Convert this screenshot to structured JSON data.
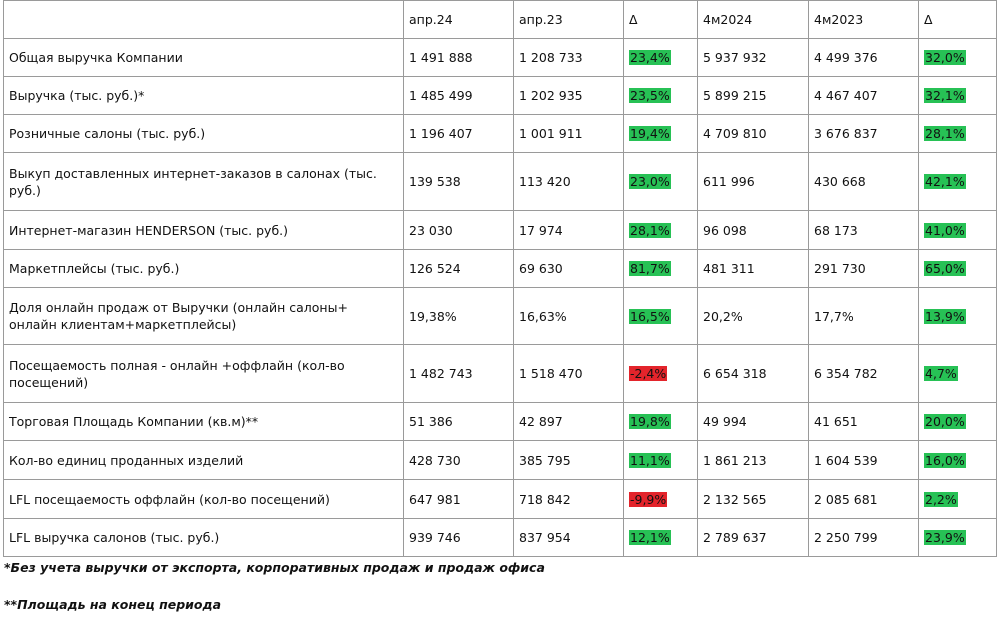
{
  "table": {
    "header": [
      "",
      "апр.24",
      "апр.23",
      "Δ",
      "4м2024",
      "4м2023",
      "Δ"
    ],
    "rows": [
      [
        "Общая выручка Компании",
        "1 491 888",
        "1 208 733",
        "23,4%",
        "5 937 932",
        "4 499 376",
        "32,0%"
      ],
      [
        "Выручка (тыс. руб.)*",
        "1 485 499",
        "1 202 935",
        "23,5%",
        "5 899 215",
        "4 467 407",
        "32,1%"
      ],
      [
        "Розничные салоны (тыс. руб.)",
        "1 196 407",
        "1 001 911",
        "19,4%",
        "4 709 810",
        "3 676 837",
        "28,1%"
      ],
      [
        "Выкуп доставленных интернет-заказов в салонах (тыс. руб.)",
        "139 538",
        "113 420",
        "23,0%",
        "611 996",
        "430 668",
        "42,1%"
      ],
      [
        "Интернет-магазин HENDERSON (тыс. руб.)",
        "23 030",
        "17 974",
        "28,1%",
        "96 098",
        "68 173",
        "41,0%"
      ],
      [
        "Маркетплейсы (тыс. руб.)",
        "126 524",
        "69 630",
        "81,7%",
        "481 311",
        "291 730",
        "65,0%"
      ],
      [
        "Доля онлайн продаж от Выручки (онлайн салоны+ онлайн клиентам+маркетплейсы)",
        "19,38%",
        "16,63%",
        "16,5%",
        "20,2%",
        "17,7%",
        "13,9%"
      ],
      [
        "Посещаемость полная - онлайн +оффлайн (кол-во посещений)",
        "1 482 743",
        "1 518 470",
        "-2,4%",
        "6 654 318",
        "6 354 782",
        "4,7%"
      ],
      [
        "Торговая Площадь Компании (кв.м)**",
        "51 386",
        "42 897",
        "19,8%",
        "49 994",
        "41 651",
        "20,0%"
      ],
      [
        "Кол-во единиц проданных изделий",
        "428 730",
        "385 795",
        "11,1%",
        "1 861 213",
        "1 604 539",
        "16,0%"
      ],
      [
        "LFL посещаемость оффлайн (кол-во посещений)",
        "647 981",
        "718 842",
        "-9,9%",
        "2 132 565",
        "2 085 681",
        "2,2%"
      ],
      [
        "LFL выручка салонов (тыс. руб.)",
        "939 746",
        "837 954",
        "12,1%",
        "2 789 637",
        "2 250 799",
        "23,9%"
      ]
    ]
  },
  "footnotes": [
    "*Без учета выручки от экспорта, корпоративных продаж и продаж офиса",
    "**Площадь на конец периода"
  ]
}
